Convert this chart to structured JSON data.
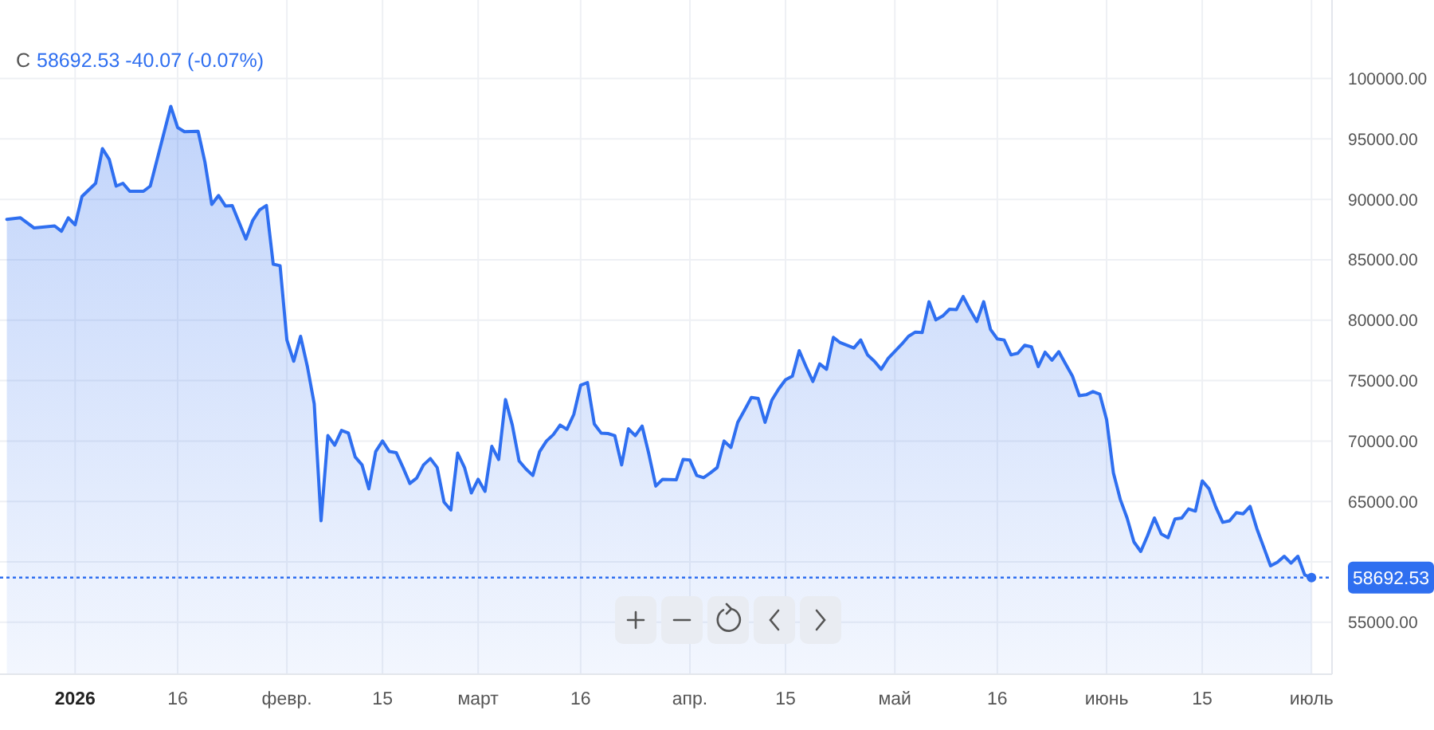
{
  "chart_data": {
    "type": "area",
    "annotations": [
      "C",
      "58692.53  -40.07 (-0.07%)"
    ],
    "xlim": [
      "2025-12-21",
      "2026-07-04"
    ],
    "ylim": [
      50700,
      106500
    ],
    "xticks": [
      {
        "value": "2026-01-01",
        "label": "2026"
      },
      {
        "value": "2026-01-16",
        "label": "16"
      },
      {
        "value": "2026-02-01",
        "label": "февр."
      },
      {
        "value": "2026-02-15",
        "label": "15"
      },
      {
        "value": "2026-03-01",
        "label": "март"
      },
      {
        "value": "2026-03-16",
        "label": "16"
      },
      {
        "value": "2026-04-01",
        "label": "апр."
      },
      {
        "value": "2026-04-15",
        "label": "15"
      },
      {
        "value": "2026-05-01",
        "label": "май"
      },
      {
        "value": "2026-05-16",
        "label": "16"
      },
      {
        "value": "2026-06-01",
        "label": "июнь"
      },
      {
        "value": "2026-06-15",
        "label": "15"
      },
      {
        "value": "2026-07-01",
        "label": "июль"
      }
    ],
    "yticks": [
      {
        "value": 55000,
        "label": "55000.00"
      },
      {
        "value": 60000,
        "label": null
      },
      {
        "value": 65000,
        "label": "65000.00"
      },
      {
        "value": 70000,
        "label": "70000.00"
      },
      {
        "value": 75000,
        "label": "75000.00"
      },
      {
        "value": 80000,
        "label": "80000.00"
      },
      {
        "value": 85000,
        "label": "85000.00"
      },
      {
        "value": 90000,
        "label": "90000.00"
      },
      {
        "value": 95000,
        "label": "95000.00"
      },
      {
        "value": 100000,
        "label": "100000.00"
      }
    ],
    "grid": true,
    "marker": "none",
    "line_style": "solid",
    "ref_lines": [
      {
        "axis": "y",
        "value": 58692.53,
        "label": "58692.53",
        "color": "#2f6ff0",
        "line_style": "dotted"
      }
    ],
    "series": [
      {
        "color": "#2f6ff0",
        "x": [
          "2025-12-22",
          "2025-12-24",
          "2025-12-26",
          "2025-12-29",
          "2025-12-30",
          "2025-12-31",
          "2026-01-01",
          "2026-01-02",
          "2026-01-04",
          "2026-01-05",
          "2026-01-06",
          "2026-01-07",
          "2026-01-08",
          "2026-01-09",
          "2026-01-11",
          "2026-01-12",
          "2026-01-15",
          "2026-01-16",
          "2026-01-17",
          "2026-01-19",
          "2026-01-20",
          "2026-01-21",
          "2026-01-22",
          "2026-01-23",
          "2026-01-24",
          "2026-01-26",
          "2026-01-27",
          "2026-01-28",
          "2026-01-29",
          "2026-01-30",
          "2026-01-31",
          "2026-02-01",
          "2026-02-02",
          "2026-02-03",
          "2026-02-04",
          "2026-02-05",
          "2026-02-06",
          "2026-02-07",
          "2026-02-08",
          "2026-02-09",
          "2026-02-10",
          "2026-02-11",
          "2026-02-12",
          "2026-02-13",
          "2026-02-14",
          "2026-02-15",
          "2026-02-16",
          "2026-02-17",
          "2026-02-18",
          "2026-02-19",
          "2026-02-20",
          "2026-02-21",
          "2026-02-22",
          "2026-02-23",
          "2026-02-24",
          "2026-02-25",
          "2026-02-26",
          "2026-02-27",
          "2026-02-28",
          "2026-03-01",
          "2026-03-02",
          "2026-03-03",
          "2026-03-04",
          "2026-03-05",
          "2026-03-06",
          "2026-03-07",
          "2026-03-08",
          "2026-03-09",
          "2026-03-10",
          "2026-03-11",
          "2026-03-12",
          "2026-03-13",
          "2026-03-14",
          "2026-03-15",
          "2026-03-16",
          "2026-03-17",
          "2026-03-18",
          "2026-03-19",
          "2026-03-20",
          "2026-03-21",
          "2026-03-22",
          "2026-03-23",
          "2026-03-24",
          "2026-03-25",
          "2026-03-26",
          "2026-03-27",
          "2026-03-28",
          "2026-03-30",
          "2026-03-31",
          "2026-04-01",
          "2026-04-02",
          "2026-04-03",
          "2026-04-04",
          "2026-04-05",
          "2026-04-06",
          "2026-04-07",
          "2026-04-08",
          "2026-04-09",
          "2026-04-10",
          "2026-04-11",
          "2026-04-12",
          "2026-04-13",
          "2026-04-14",
          "2026-04-15",
          "2026-04-16",
          "2026-04-17",
          "2026-04-18",
          "2026-04-19",
          "2026-04-20",
          "2026-04-21",
          "2026-04-22",
          "2026-04-23",
          "2026-04-25",
          "2026-04-26",
          "2026-04-27",
          "2026-04-28",
          "2026-04-29",
          "2026-04-30",
          "2026-05-02",
          "2026-05-03",
          "2026-05-04",
          "2026-05-05",
          "2026-05-06",
          "2026-05-07",
          "2026-05-08",
          "2026-05-09",
          "2026-05-10",
          "2026-05-11",
          "2026-05-12",
          "2026-05-13",
          "2026-05-14",
          "2026-05-15",
          "2026-05-16",
          "2026-05-17",
          "2026-05-18",
          "2026-05-19",
          "2026-05-20",
          "2026-05-21",
          "2026-05-22",
          "2026-05-23",
          "2026-05-24",
          "2026-05-25",
          "2026-05-26",
          "2026-05-27",
          "2026-05-28",
          "2026-05-29",
          "2026-05-30",
          "2026-05-31",
          "2026-06-01",
          "2026-06-02",
          "2026-06-03",
          "2026-06-04",
          "2026-06-05",
          "2026-06-06",
          "2026-06-07",
          "2026-06-08",
          "2026-06-09",
          "2026-06-10",
          "2026-06-11",
          "2026-06-12",
          "2026-06-13",
          "2026-06-14",
          "2026-06-15",
          "2026-06-16",
          "2026-06-17",
          "2026-06-18",
          "2026-06-19",
          "2026-06-20",
          "2026-06-21",
          "2026-06-22",
          "2026-06-23",
          "2026-06-24",
          "2026-06-25",
          "2026-06-26",
          "2026-06-27",
          "2026-06-28",
          "2026-06-29",
          "2026-06-30",
          "2026-07-01"
        ],
        "values": [
          88350,
          88470,
          87630,
          87800,
          87370,
          88470,
          87900,
          90240,
          91330,
          94200,
          93300,
          91100,
          91330,
          90670,
          90670,
          91100,
          97700,
          95950,
          95600,
          95640,
          93090,
          89580,
          90320,
          89450,
          89490,
          86720,
          88260,
          89130,
          89490,
          84640,
          84510,
          78360,
          76600,
          78670,
          76160,
          73090,
          63400,
          70450,
          69660,
          70880,
          70660,
          68680,
          68020,
          66040,
          69130,
          70000,
          69130,
          69040,
          67810,
          66490,
          66930,
          68020,
          68550,
          67810,
          64950,
          64290,
          69000,
          67810,
          65700,
          66830,
          65830,
          69560,
          68470,
          73430,
          71320,
          68340,
          67680,
          67150,
          69130,
          70000,
          70530,
          71320,
          70970,
          72200,
          74620,
          74840,
          71410,
          70660,
          70620,
          70450,
          68020,
          71010,
          70450,
          71240,
          68900,
          66270,
          66830,
          66790,
          68470,
          68420,
          67150,
          66970,
          67360,
          67810,
          70000,
          69470,
          71540,
          72560,
          73610,
          73520,
          71540,
          73390,
          74310,
          75070,
          75370,
          77480,
          76160,
          74930,
          76380,
          75940,
          78580,
          78140,
          77700,
          78360,
          77130,
          76600,
          75940,
          76820,
          78010,
          78670,
          79020,
          78980,
          81530,
          80030,
          80340,
          80910,
          80870,
          81960,
          80870,
          79890,
          81530,
          79240,
          78450,
          78360,
          77130,
          77260,
          77920,
          77790,
          76160,
          77350,
          76690,
          77390,
          76380,
          75370,
          73750,
          73830,
          74090,
          73880,
          71770,
          67360,
          65170,
          63630,
          61650,
          60860,
          62180,
          63630,
          62310,
          62000,
          63540,
          63630,
          64380,
          64200,
          66700,
          66040,
          64510,
          63270,
          63400,
          64070,
          63980,
          64590,
          62740,
          61210,
          59670,
          59970,
          60460,
          59890,
          60460,
          58920,
          58692.53
        ]
      }
    ]
  }
}
